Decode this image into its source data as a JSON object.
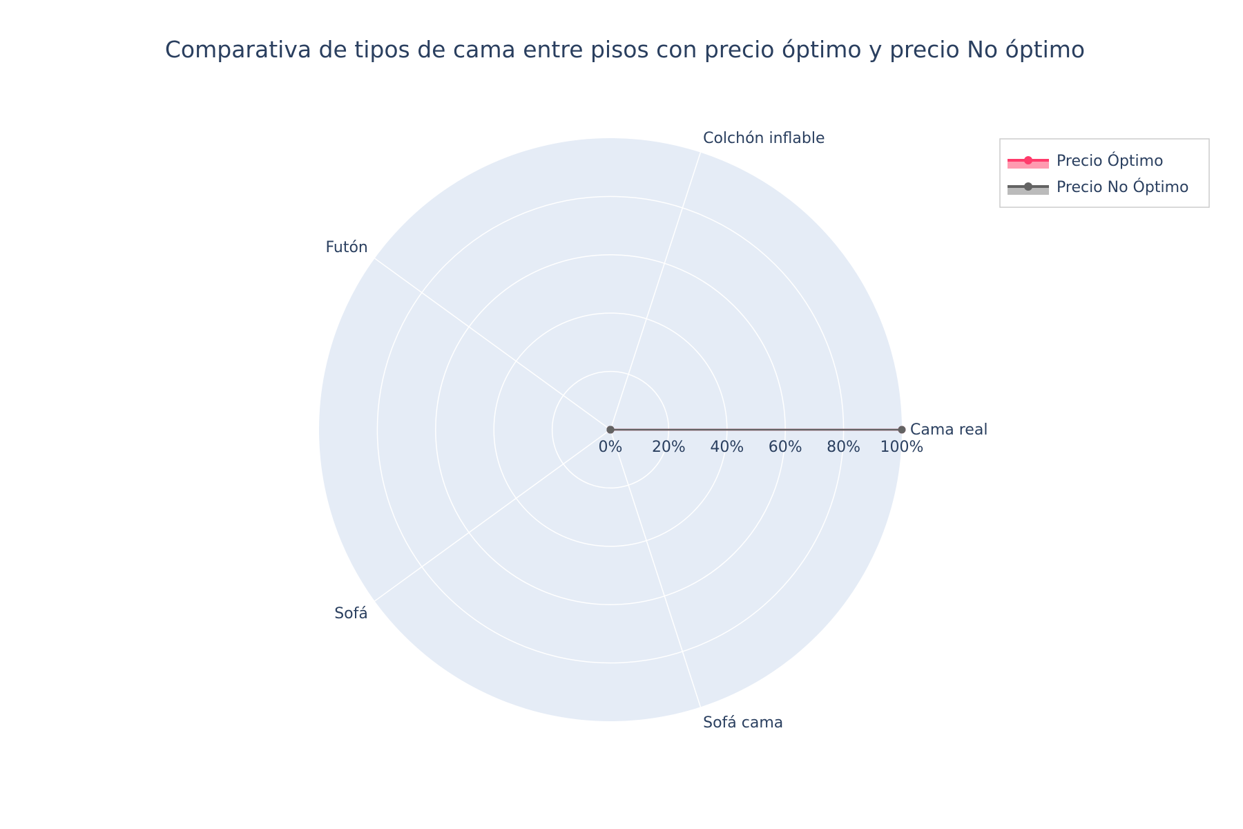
{
  "chart_data": {
    "type": "radar",
    "title": "Comparativa de tipos de cama entre pisos con precio óptimo y precio No óptimo",
    "categories": [
      "Cama real",
      "Colchón inflable",
      "Futón",
      "Sofá",
      "Sofá cama"
    ],
    "radial_range": [
      0,
      100
    ],
    "radial_ticks": [
      "0%",
      "20%",
      "40%",
      "60%",
      "80%",
      "100%"
    ],
    "radial_tick_values": [
      0,
      20,
      40,
      60,
      80,
      100
    ],
    "grid": true,
    "legend_position": "top-right",
    "series": [
      {
        "name": "Precio Óptimo",
        "values": [
          100,
          0,
          0,
          0,
          0
        ],
        "color": "#ff3b6b",
        "fill": "#ff6f8f"
      },
      {
        "name": "Precio No Óptimo",
        "values": [
          100,
          0,
          0,
          0,
          0
        ],
        "color": "#636363",
        "fill": "#9e9e9e"
      }
    ],
    "polar_bg": "#e5ecf6"
  }
}
